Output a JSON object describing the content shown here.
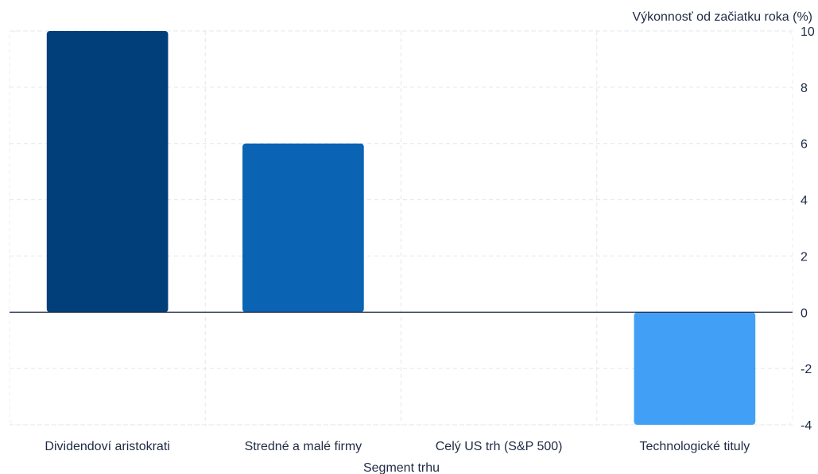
{
  "chart_data": {
    "type": "bar",
    "title": "",
    "xlabel": "Segment trhu",
    "ylabel": "Výkonnosť od začiatku roka (%)",
    "categories": [
      "Dividendoví aristokrati",
      "Stredné a malé firmy",
      "Celý US trh (S&P 500)",
      "Technologické tituly"
    ],
    "values": [
      10,
      6,
      0,
      -4
    ],
    "colors": [
      "#003f7a",
      "#0a63b3",
      "#2f86d6",
      "#41a0f5"
    ],
    "ylim": [
      -4,
      10
    ],
    "yticks": [
      -4,
      -2,
      0,
      2,
      4,
      6,
      8,
      10
    ],
    "y_axis_side": "right",
    "grid": true
  }
}
